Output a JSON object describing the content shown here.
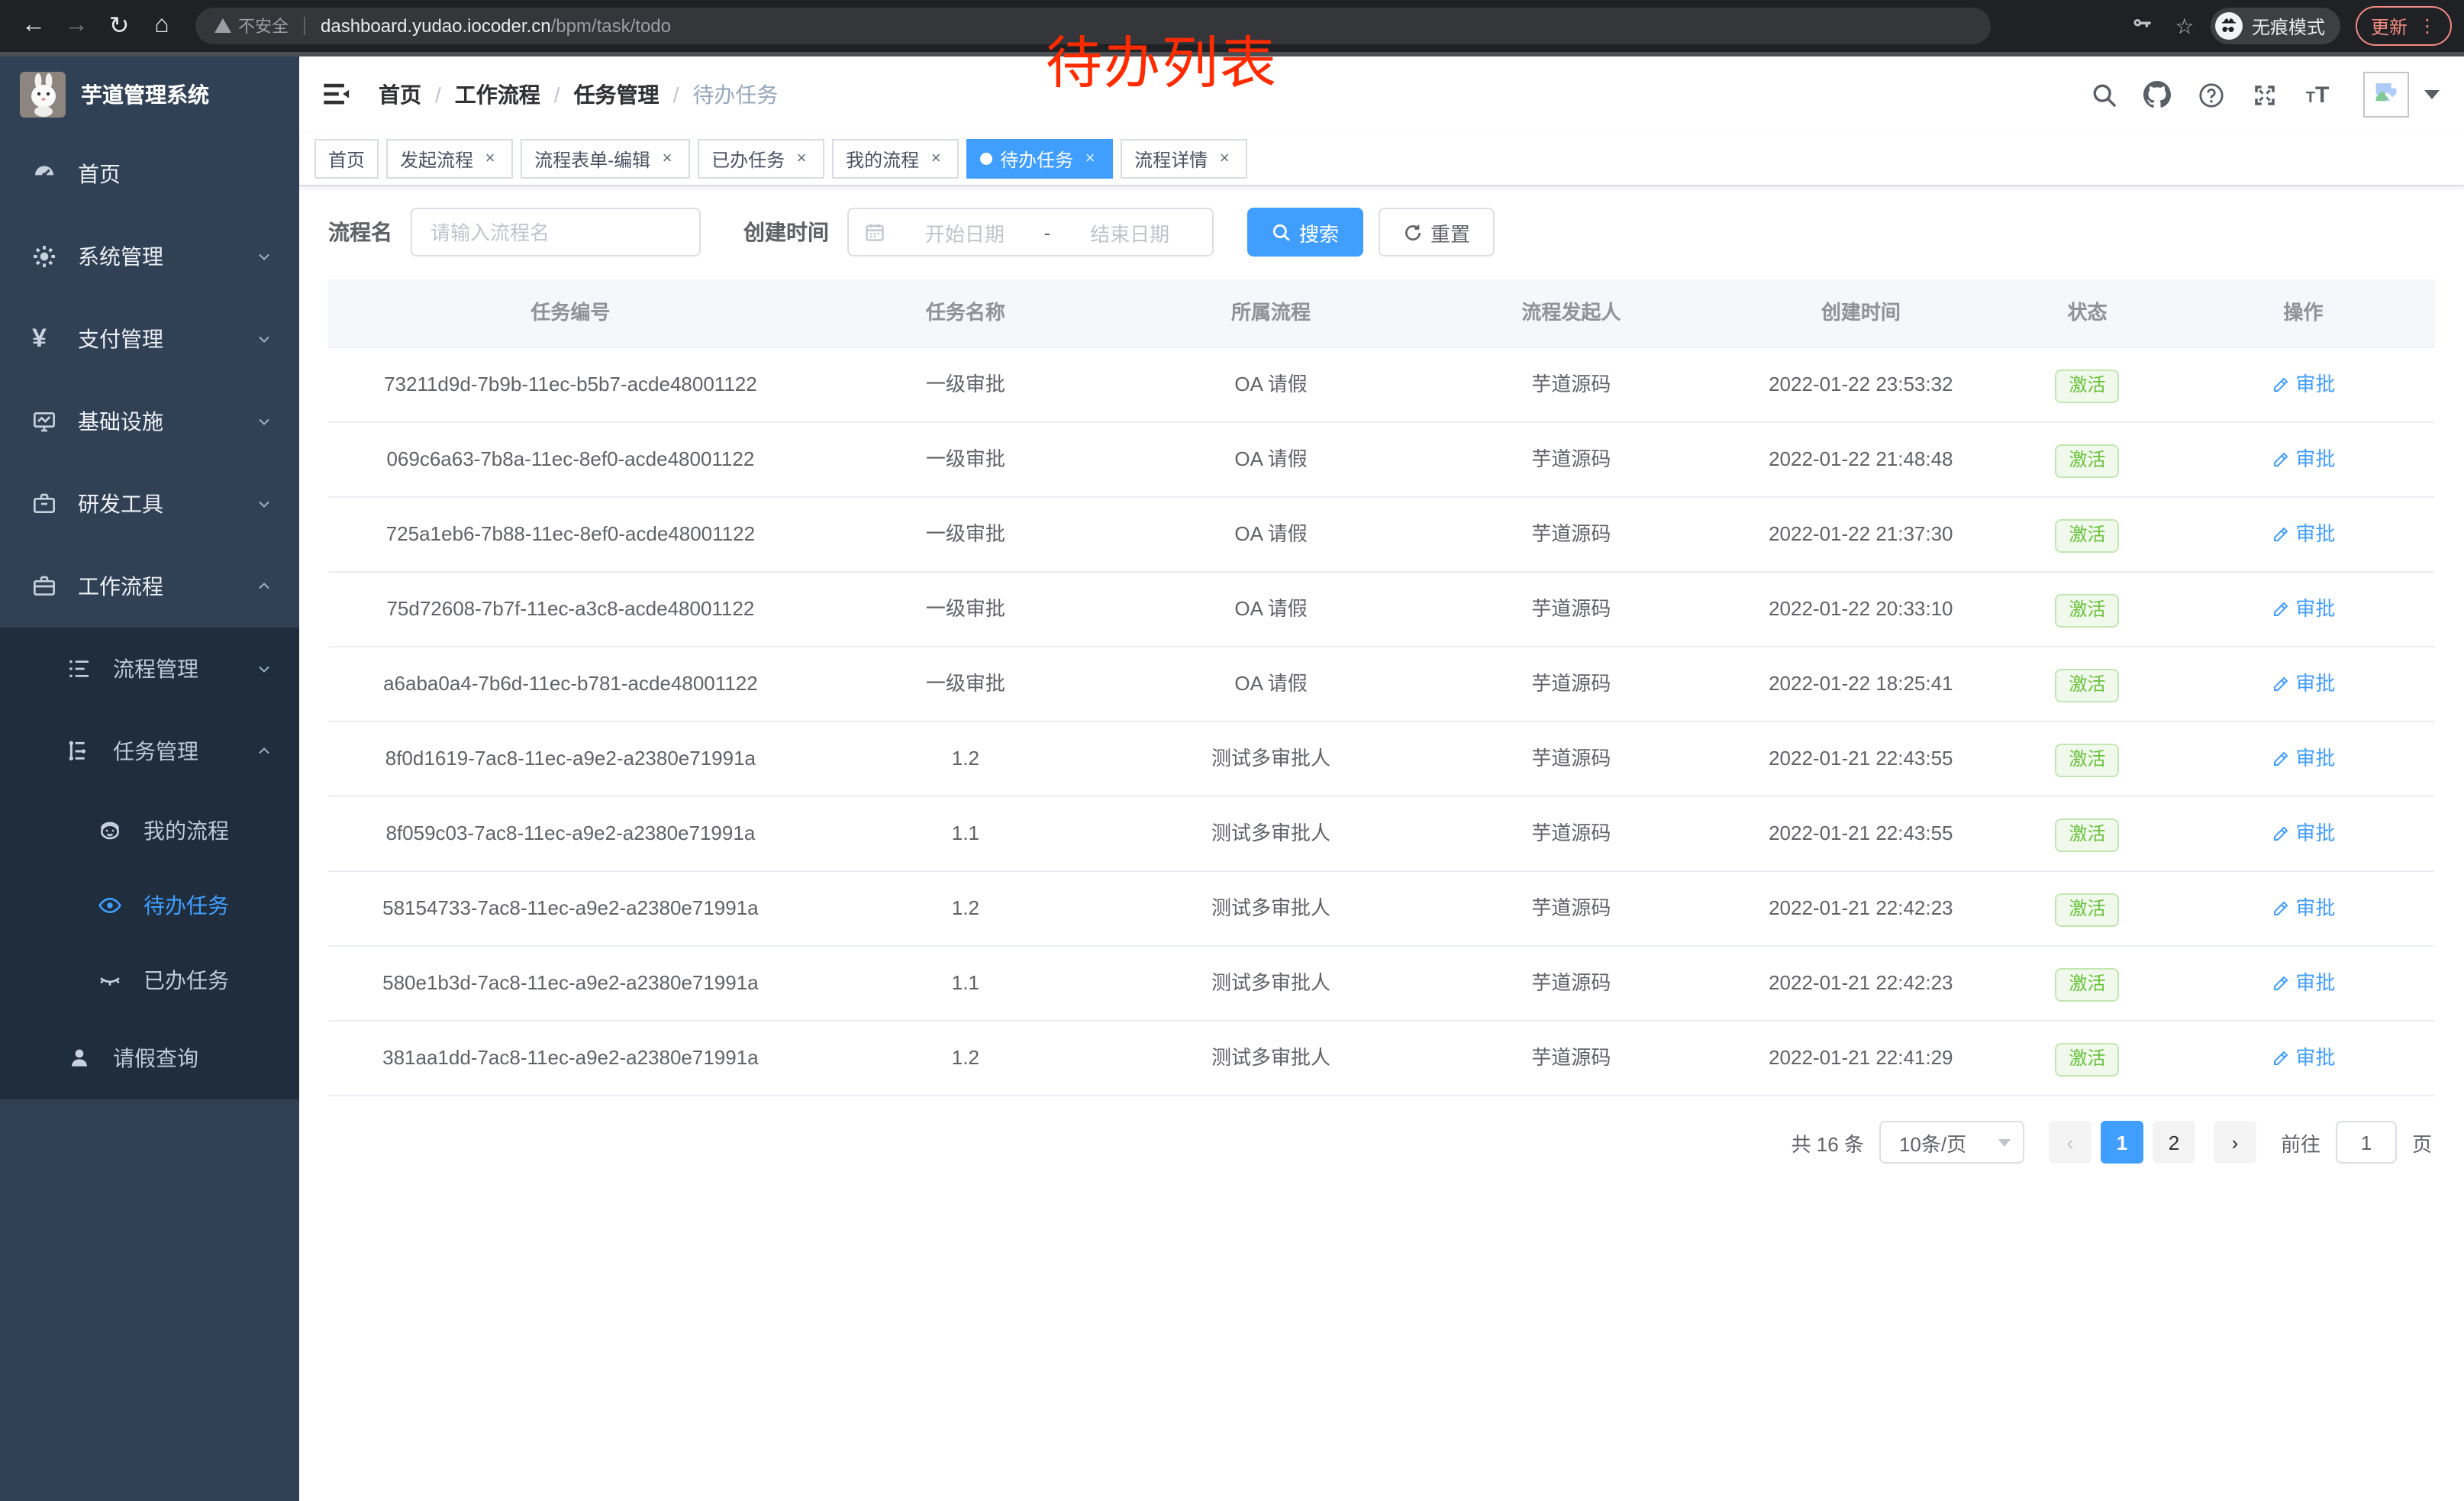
{
  "colors": {
    "accent": "#409eff",
    "success": "#67c23a",
    "annotation_red": "#fe2b00",
    "sidebar_bg": "#304156",
    "submenu_bg": "#1f2d3d"
  },
  "browser": {
    "security_label": "不安全",
    "url_domain": "dashboard.yudao.iocoder.cn",
    "url_path": "/bpm/task/todo",
    "incognito_label": "无痕模式",
    "update_label": "更新",
    "back_icon": "←",
    "forward_icon": "→",
    "reload_icon": "↻",
    "home_icon": "⌂",
    "star_icon": "☆",
    "menu_dots": "⋮"
  },
  "annotation": {
    "text": "待办列表"
  },
  "sidebar": {
    "title": "芋道管理系统",
    "items": [
      {
        "icon": "dashboard-icon",
        "label": "首页",
        "level": 1
      },
      {
        "icon": "gear-icon",
        "label": "系统管理",
        "level": 1,
        "chevron": "down"
      },
      {
        "icon": "yen-icon",
        "label": "支付管理",
        "level": 1,
        "chevron": "down"
      },
      {
        "icon": "infra-icon",
        "label": "基础设施",
        "level": 1,
        "chevron": "down"
      },
      {
        "icon": "tools-icon",
        "label": "研发工具",
        "level": 1,
        "chevron": "down"
      },
      {
        "icon": "workflow-icon",
        "label": "工作流程",
        "level": 1,
        "chevron": "up"
      },
      {
        "icon": "process-mgmt-icon",
        "label": "流程管理",
        "level": 2,
        "chevron": "down",
        "dark": true
      },
      {
        "icon": "task-mgmt-icon",
        "label": "任务管理",
        "level": 2,
        "chevron": "up",
        "dark": true
      },
      {
        "icon": "my-process-icon",
        "label": "我的流程",
        "level": 3,
        "dark": true
      },
      {
        "icon": "eye-icon",
        "label": "待办任务",
        "level": 3,
        "dark": true,
        "active": true
      },
      {
        "icon": "eye-closed-icon",
        "label": "已办任务",
        "level": 3,
        "dark": true
      },
      {
        "icon": "user-icon",
        "label": "请假查询",
        "level": 2,
        "dark": true
      }
    ]
  },
  "header": {
    "breadcrumb": [
      "首页",
      "工作流程",
      "任务管理",
      "待办任务"
    ],
    "separator": "/"
  },
  "tabs": [
    {
      "label": "首页",
      "closable": false,
      "active": false
    },
    {
      "label": "发起流程",
      "closable": true,
      "active": false
    },
    {
      "label": "流程表单-编辑",
      "closable": true,
      "active": false
    },
    {
      "label": "已办任务",
      "closable": true,
      "active": false
    },
    {
      "label": "我的流程",
      "closable": true,
      "active": false
    },
    {
      "label": "待办任务",
      "closable": true,
      "active": true
    },
    {
      "label": "流程详情",
      "closable": true,
      "active": false
    }
  ],
  "search": {
    "name_label": "流程名",
    "name_placeholder": "请输入流程名",
    "time_label": "创建时间",
    "start_placeholder": "开始日期",
    "range_separator": "-",
    "end_placeholder": "结束日期",
    "search_label": "搜索",
    "reset_label": "重置"
  },
  "table": {
    "columns": [
      "任务编号",
      "任务名称",
      "所属流程",
      "流程发起人",
      "创建时间",
      "状态",
      "操作"
    ],
    "action_label": "审批",
    "rows": [
      {
        "id": "73211d9d-7b9b-11ec-b5b7-acde48001122",
        "name": "一级审批",
        "process": "OA 请假",
        "starter": "芋道源码",
        "time": "2022-01-22 23:53:32",
        "status": "激活"
      },
      {
        "id": "069c6a63-7b8a-11ec-8ef0-acde48001122",
        "name": "一级审批",
        "process": "OA 请假",
        "starter": "芋道源码",
        "time": "2022-01-22 21:48:48",
        "status": "激活"
      },
      {
        "id": "725a1eb6-7b88-11ec-8ef0-acde48001122",
        "name": "一级审批",
        "process": "OA 请假",
        "starter": "芋道源码",
        "time": "2022-01-22 21:37:30",
        "status": "激活"
      },
      {
        "id": "75d72608-7b7f-11ec-a3c8-acde48001122",
        "name": "一级审批",
        "process": "OA 请假",
        "starter": "芋道源码",
        "time": "2022-01-22 20:33:10",
        "status": "激活"
      },
      {
        "id": "a6aba0a4-7b6d-11ec-b781-acde48001122",
        "name": "一级审批",
        "process": "OA 请假",
        "starter": "芋道源码",
        "time": "2022-01-22 18:25:41",
        "status": "激活"
      },
      {
        "id": "8f0d1619-7ac8-11ec-a9e2-a2380e71991a",
        "name": "1.2",
        "process": "测试多审批人",
        "starter": "芋道源码",
        "time": "2022-01-21 22:43:55",
        "status": "激活"
      },
      {
        "id": "8f059c03-7ac8-11ec-a9e2-a2380e71991a",
        "name": "1.1",
        "process": "测试多审批人",
        "starter": "芋道源码",
        "time": "2022-01-21 22:43:55",
        "status": "激活"
      },
      {
        "id": "58154733-7ac8-11ec-a9e2-a2380e71991a",
        "name": "1.2",
        "process": "测试多审批人",
        "starter": "芋道源码",
        "time": "2022-01-21 22:42:23",
        "status": "激活"
      },
      {
        "id": "580e1b3d-7ac8-11ec-a9e2-a2380e71991a",
        "name": "1.1",
        "process": "测试多审批人",
        "starter": "芋道源码",
        "time": "2022-01-21 22:42:23",
        "status": "激活"
      },
      {
        "id": "381aa1dd-7ac8-11ec-a9e2-a2380e71991a",
        "name": "1.2",
        "process": "测试多审批人",
        "starter": "芋道源码",
        "time": "2022-01-21 22:41:29",
        "status": "激活"
      }
    ]
  },
  "pagination": {
    "total": "共 16 条",
    "page_size": "10条/页",
    "pages": [
      "1",
      "2"
    ],
    "active_page": "1",
    "prev_icon": "‹",
    "next_icon": "›",
    "goto_label": "前往",
    "goto_value": "1",
    "goto_suffix": "页"
  }
}
